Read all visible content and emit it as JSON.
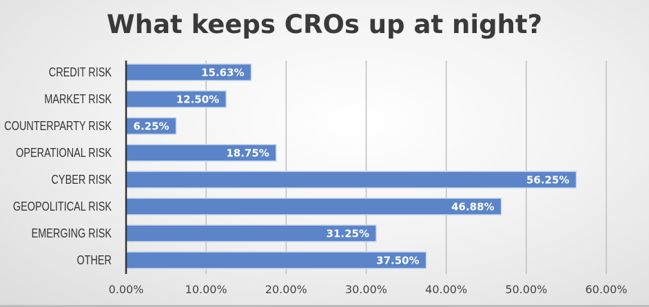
{
  "chart_data": {
    "type": "bar",
    "orientation": "horizontal",
    "title": "What keeps CROs up at night?",
    "categories": [
      "CREDIT RISK",
      "MARKET RISK",
      "COUNTERPARTY RISK",
      "OPERATIONAL RISK",
      "CYBER RISK",
      "GEOPOLITICAL RISK",
      "EMERGING RISK",
      "OTHER"
    ],
    "values": [
      15.63,
      12.5,
      6.25,
      18.75,
      56.25,
      46.88,
      31.25,
      37.5
    ],
    "data_labels": [
      "15.63%",
      "12.50%",
      "6.25%",
      "18.75%",
      "56.25%",
      "46.88%",
      "31.25%",
      "37.50%"
    ],
    "xlim": [
      0,
      60
    ],
    "xticks": [
      0,
      10,
      20,
      30,
      40,
      50,
      60
    ],
    "xtick_labels": [
      "0.00%",
      "10.00%",
      "20.00%",
      "30.00%",
      "40.00%",
      "50.00%",
      "60.00%"
    ],
    "xlabel": "",
    "ylabel": "",
    "grid": true,
    "legend": "none",
    "bar_color": "#5b84c9"
  }
}
